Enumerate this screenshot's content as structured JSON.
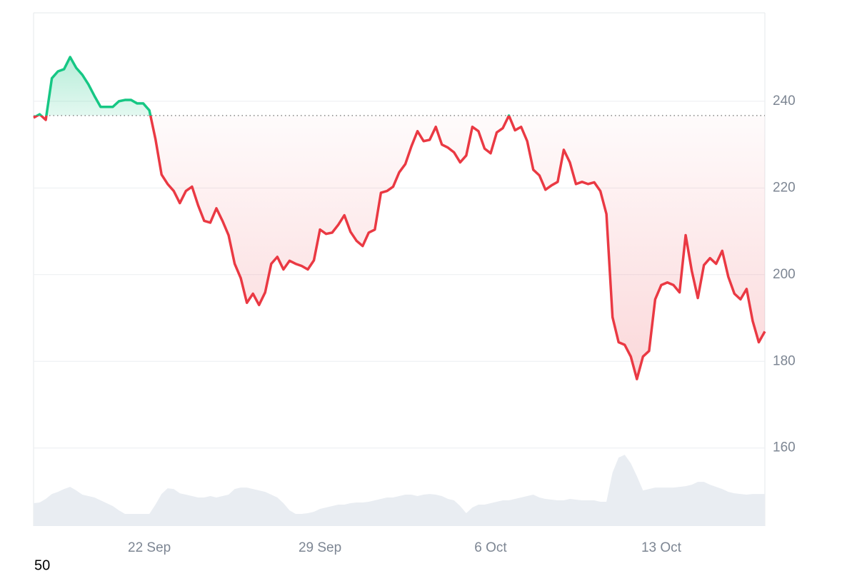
{
  "chart_data": {
    "type": "line",
    "categories": [
      null,
      null,
      null,
      null,
      null,
      null,
      null,
      null,
      null,
      null,
      null,
      null,
      null,
      null,
      null,
      null,
      null,
      null,
      null,
      "22 Sep",
      null,
      null,
      null,
      null,
      null,
      null,
      null,
      null,
      null,
      null,
      null,
      null,
      null,
      null,
      null,
      null,
      null,
      null,
      null,
      null,
      null,
      null,
      null,
      null,
      null,
      null,
      null,
      "29 Sep",
      null,
      null,
      null,
      null,
      null,
      null,
      null,
      null,
      null,
      null,
      null,
      null,
      null,
      null,
      null,
      null,
      null,
      null,
      null,
      null,
      null,
      null,
      null,
      null,
      null,
      null,
      null,
      "6 Oct",
      null,
      null,
      null,
      null,
      null,
      null,
      null,
      null,
      null,
      null,
      null,
      null,
      null,
      null,
      null,
      null,
      null,
      null,
      null,
      null,
      null,
      null,
      null,
      null,
      null,
      null,
      null,
      "13 Oct",
      null,
      null,
      null,
      null,
      null,
      null,
      null,
      null,
      null,
      null,
      null,
      null,
      null,
      null,
      null,
      null,
      null
    ],
    "values": [
      236.2,
      237,
      235.7,
      245.3,
      246.9,
      247.4,
      250.2,
      247.7,
      246.1,
      243.9,
      241.2,
      238.7,
      238.7,
      238.7,
      240,
      240.3,
      240.3,
      239.5,
      239.5,
      237.9,
      231.3,
      223.1,
      220.9,
      219.3,
      216.5,
      219.3,
      220.3,
      216,
      212.4,
      212,
      215.3,
      212.4,
      209.1,
      202.5,
      199.2,
      193.5,
      195.6,
      193,
      195.9,
      202.5,
      204.1,
      201.2,
      203.2,
      202.5,
      202,
      201.2,
      203.3,
      210.4,
      209.4,
      209.7,
      211.5,
      213.7,
      209.9,
      207.8,
      206.6,
      209.7,
      210.4,
      218.9,
      219.3,
      220.3,
      223.6,
      225.5,
      229.6,
      233.1,
      230.8,
      231.1,
      234.1,
      230,
      229.3,
      228.2,
      225.9,
      227.5,
      234.1,
      233.1,
      229.1,
      228,
      232.8,
      233.8,
      236.7,
      233.3,
      234.1,
      230.8,
      224.2,
      222.9,
      219.6,
      220.6,
      221.4,
      228.8,
      225.9,
      220.9,
      221.4,
      220.9,
      221.3,
      219.3,
      214,
      190.2,
      184.4,
      183.8,
      181.1,
      175.9,
      181.1,
      182.4,
      194.3,
      197.6,
      198.2,
      197.6,
      195.9,
      209.1,
      200.9,
      194.6,
      202.2,
      203.8,
      202.5,
      205.5,
      199.5,
      195.6,
      194.3,
      196.7,
      189.3,
      184.4,
      186.9
    ],
    "volume": [
      32,
      33,
      38,
      45,
      48,
      52,
      55,
      50,
      44,
      42,
      40,
      36,
      32,
      28,
      22,
      17,
      17,
      17,
      17,
      17,
      30,
      45,
      53,
      52,
      46,
      44,
      42,
      40,
      40,
      42,
      40,
      42,
      44,
      52,
      54,
      54,
      52,
      50,
      48,
      44,
      40,
      32,
      22,
      17,
      17,
      18,
      20,
      24,
      26,
      28,
      30,
      30,
      32,
      33,
      33,
      34,
      36,
      38,
      40,
      40,
      42,
      44,
      44,
      42,
      44,
      45,
      44,
      42,
      38,
      36,
      28,
      18,
      26,
      30,
      30,
      32,
      34,
      36,
      36,
      38,
      40,
      42,
      44,
      40,
      38,
      37,
      36,
      36,
      38,
      37,
      36,
      36,
      36,
      34,
      34,
      75,
      96,
      100,
      88,
      70,
      50,
      52,
      54,
      54,
      54,
      54,
      55,
      56,
      58,
      62,
      62,
      58,
      55,
      52,
      48,
      46,
      45,
      44,
      45,
      45,
      45
    ],
    "baseline": 236.7,
    "up_color": "#16c784",
    "down_color": "#ea3943",
    "volume_color": "#e9edf2",
    "ylim": [
      142,
      260.4
    ],
    "yticks": [
      160,
      180,
      200,
      220,
      240
    ],
    "y2lim": [
      0,
      720
    ],
    "grid": true,
    "footer_label": "50"
  }
}
